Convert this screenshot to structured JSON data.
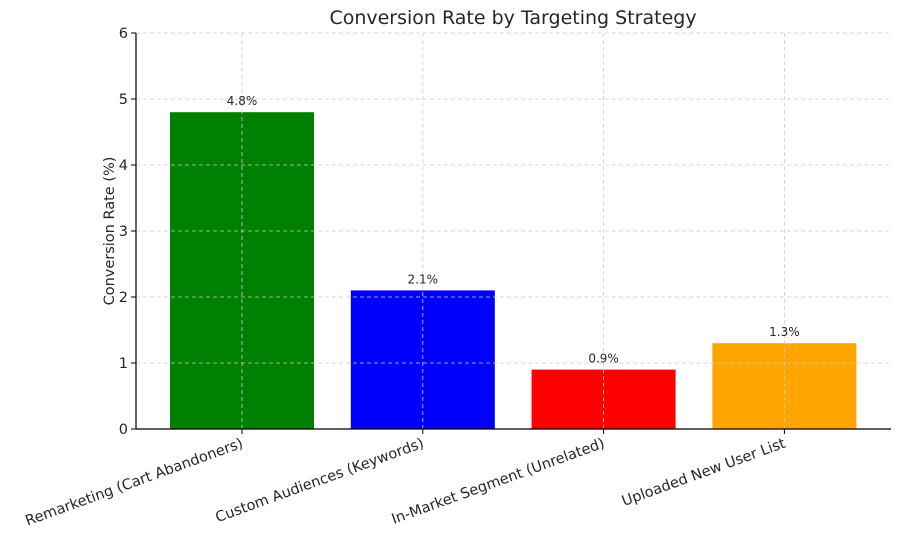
{
  "chart_data": {
    "type": "bar",
    "title": "Conversion Rate by Targeting Strategy",
    "xlabel": "",
    "ylabel": "Conversion Rate (%)",
    "ylim": [
      0,
      6
    ],
    "yticks": [
      0,
      1,
      2,
      3,
      4,
      5,
      6
    ],
    "grid": true,
    "categories": [
      "Remarketing (Cart Abandoners)",
      "Custom Audiences (Keywords)",
      "In-Market Segment (Unrelated)",
      "Uploaded New User List"
    ],
    "values": [
      4.8,
      2.1,
      0.9,
      1.3
    ],
    "value_labels": [
      "4.8%",
      "2.1%",
      "0.9%",
      "1.3%"
    ],
    "colors": [
      "#008000",
      "#0000ff",
      "#ff0000",
      "#ffa500"
    ]
  }
}
